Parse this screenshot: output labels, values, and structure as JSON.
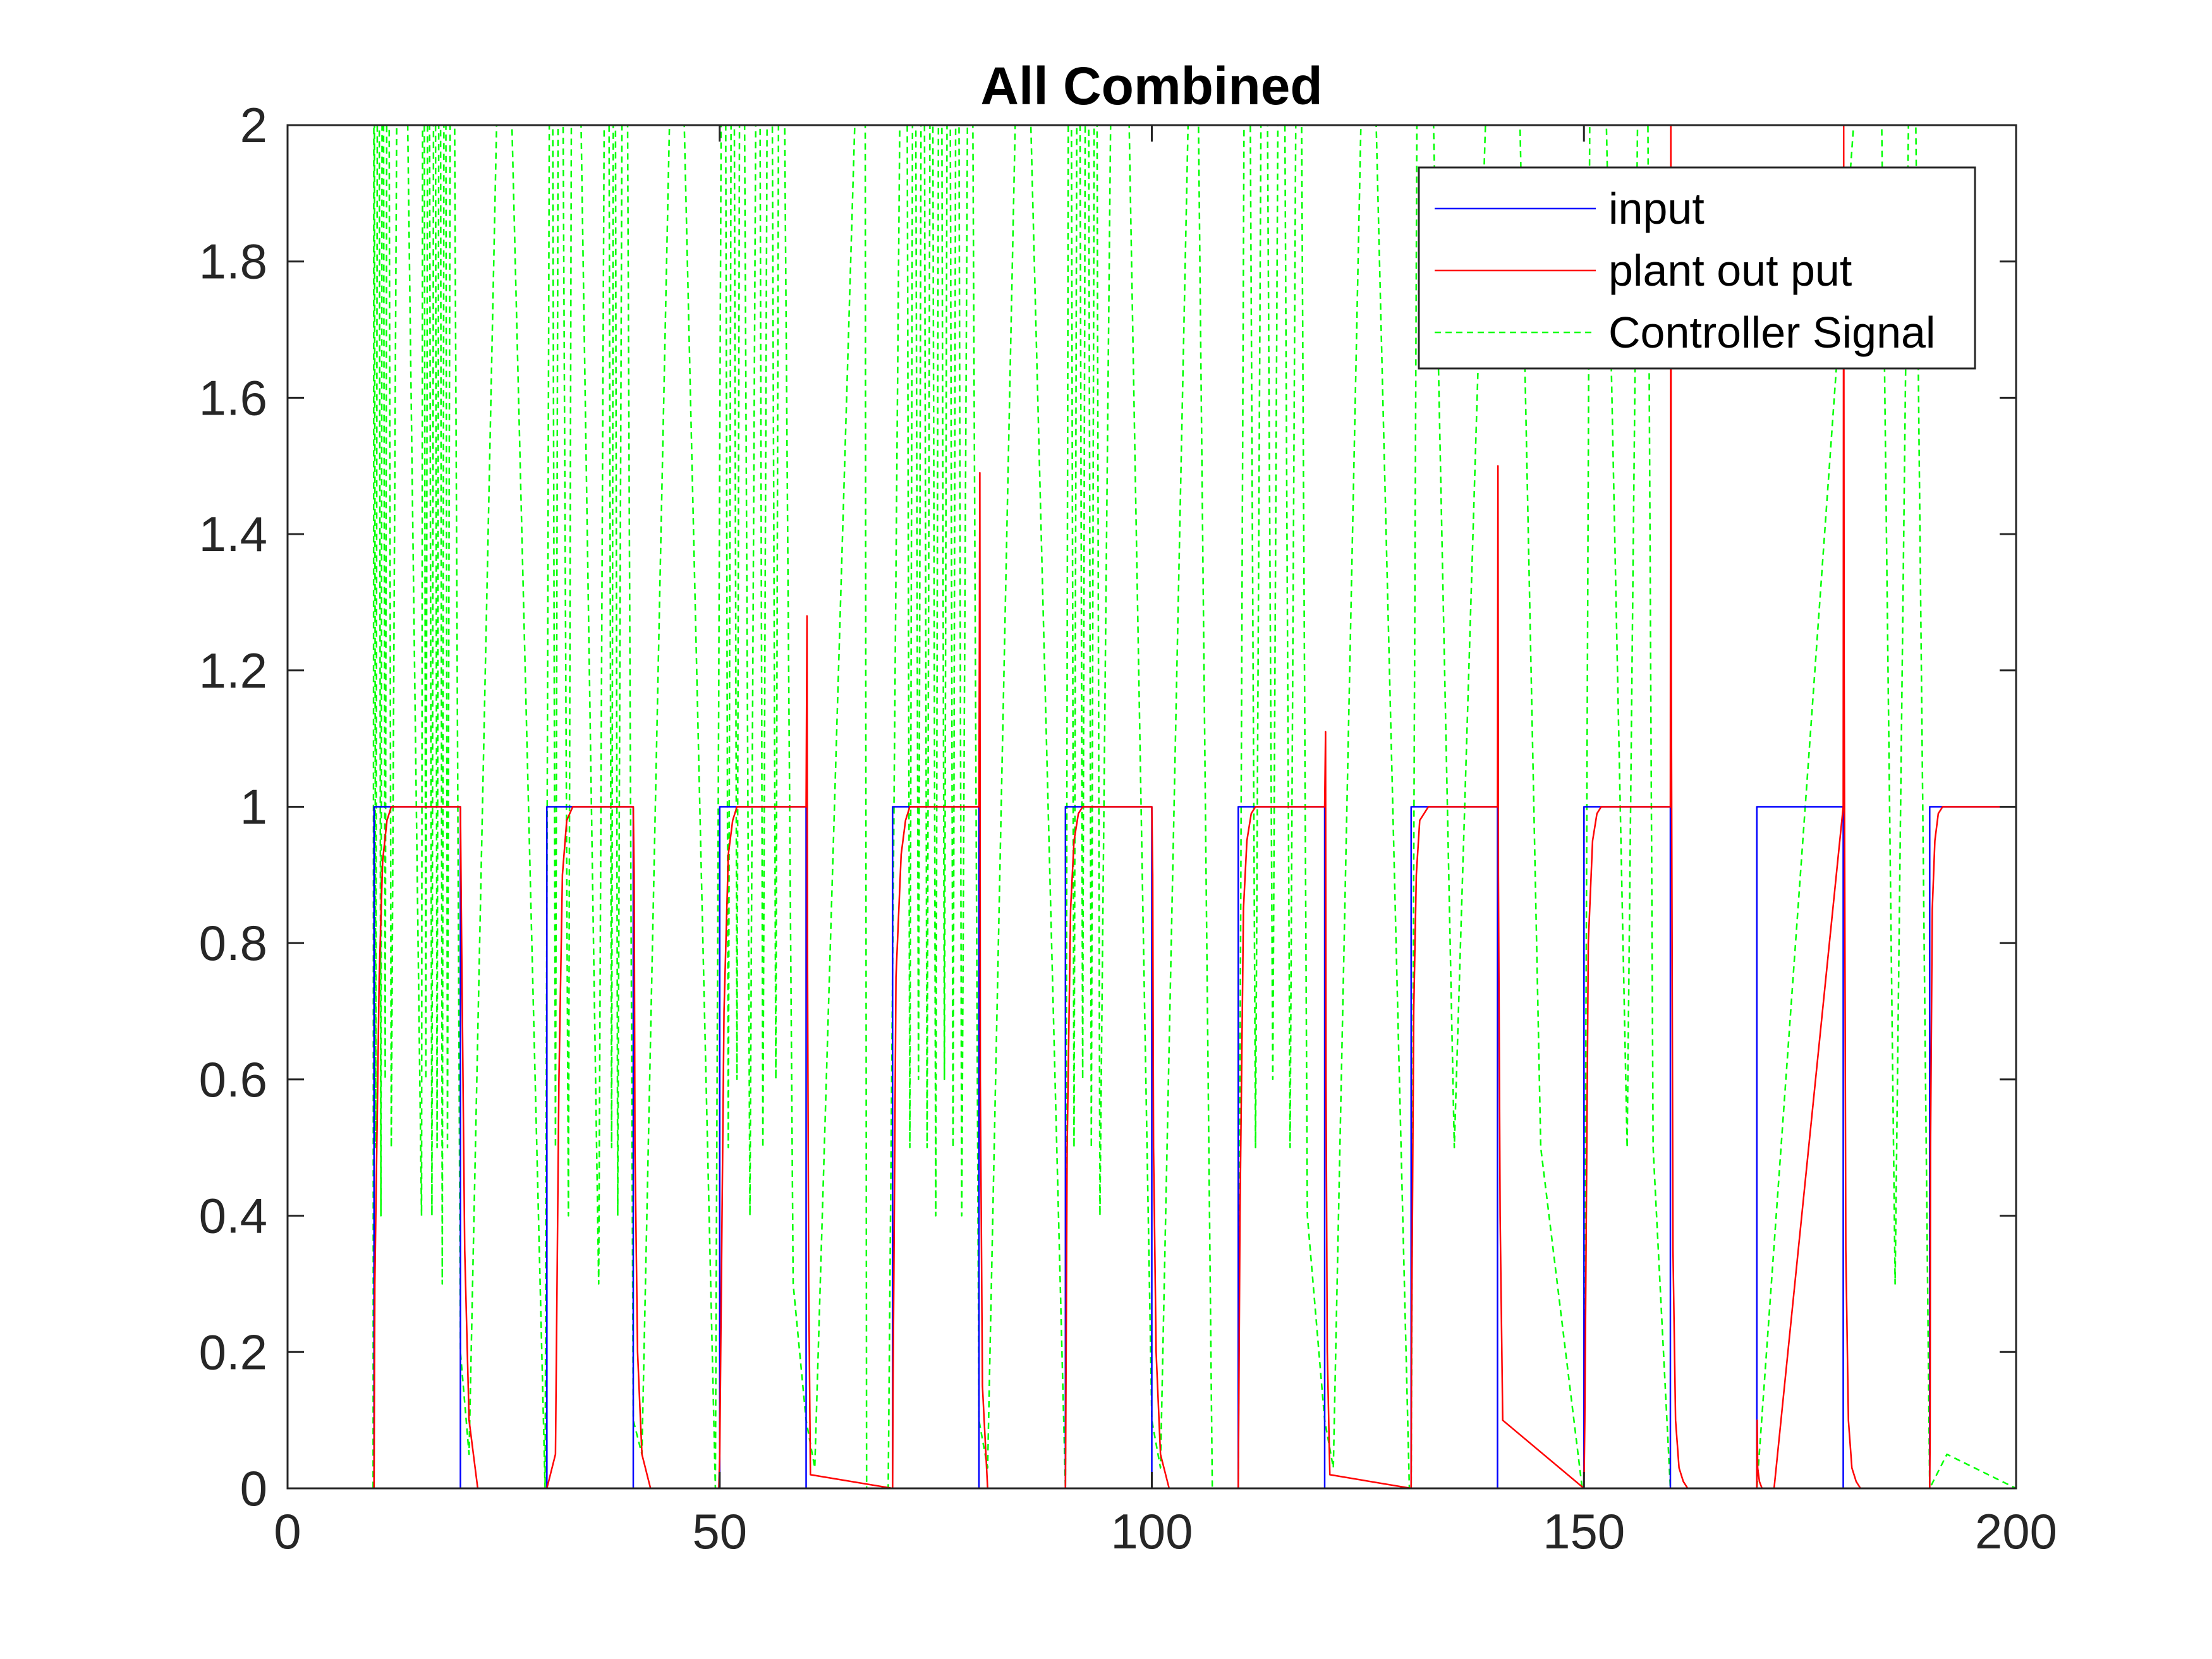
{
  "chart_data": {
    "type": "line",
    "title": "All Combined",
    "xlabel": "",
    "ylabel": "",
    "xlim": [
      0,
      200
    ],
    "ylim": [
      0,
      2
    ],
    "xticks": [
      "0",
      "50",
      "100",
      "150",
      "200"
    ],
    "yticks": [
      "0",
      "0.2",
      "0.4",
      "0.6",
      "0.8",
      "1",
      "1.2",
      "1.4",
      "1.6",
      "1.8",
      "2"
    ],
    "grid": false,
    "legend_position": "top-right",
    "series": [
      {
        "name": "input",
        "color": "#0000ff",
        "style": "solid",
        "x": [
          0,
          10,
          10,
          20,
          20,
          30,
          30,
          40,
          40,
          50,
          50,
          60,
          60,
          70,
          70,
          80,
          80,
          90,
          90,
          100,
          100,
          110,
          110,
          120,
          120,
          130,
          130,
          140,
          140,
          150,
          150,
          160,
          160,
          170,
          170,
          180,
          180,
          190,
          190,
          200
        ],
        "y": [
          0,
          0,
          1,
          1,
          0,
          0,
          1,
          1,
          0,
          0,
          1,
          1,
          0,
          0,
          1,
          1,
          0,
          0,
          1,
          1,
          0,
          0,
          1,
          1,
          0,
          0,
          1,
          1,
          0,
          0,
          1,
          1,
          0,
          0,
          1,
          1,
          0,
          0,
          1,
          1
        ]
      },
      {
        "name": "plant out put",
        "color": "#ff0000",
        "style": "solid",
        "x": [
          0,
          10,
          10.1,
          10.6,
          11,
          11.5,
          12,
          20,
          20.1,
          20.5,
          21,
          22,
          30,
          31,
          31.4,
          31.8,
          32.3,
          33,
          40,
          40.1,
          40.2,
          40.5,
          41,
          42,
          49.9,
          50,
          50.5,
          51,
          51.5,
          52,
          60,
          60.1,
          60.15,
          60.3,
          60.5,
          70,
          70.05,
          70.2,
          70.4,
          71,
          71.5,
          72,
          80,
          80.1,
          80.15,
          80.4,
          81,
          90,
          90.05,
          90.2,
          90.6,
          91,
          91.5,
          92,
          100,
          100.1,
          100.2,
          100.5,
          101,
          102,
          110,
          110.2,
          110.6,
          111,
          111.5,
          112,
          120,
          120.1,
          120.15,
          120.3,
          120.6,
          130,
          130.05,
          130.3,
          130.6,
          131,
          132,
          140,
          140.05,
          140.1,
          140.3,
          140.6,
          150,
          150.1,
          150.5,
          151,
          151.5,
          152,
          160,
          160.05,
          160.1,
          160.3,
          160.6,
          161,
          161.5,
          162,
          170,
          170.05,
          170.1,
          170.3,
          170.6,
          171,
          171.5,
          172,
          180,
          180.05,
          180.1,
          180.3,
          180.6,
          181,
          181.5,
          182,
          190,
          190.05,
          190.1,
          190.3,
          190.6,
          191,
          191.5,
          192,
          200
        ],
        "y": [
          0,
          0,
          0.3,
          0.75,
          0.92,
          0.98,
          1,
          1,
          0.85,
          0.35,
          0.1,
          0,
          0,
          0.05,
          0.6,
          0.9,
          0.98,
          1,
          1,
          0.9,
          0.5,
          0.2,
          0.05,
          0,
          0,
          0.05,
          0.7,
          0.93,
          0.98,
          1,
          1,
          1.28,
          0.8,
          0.3,
          0.02,
          0,
          0.13,
          0.4,
          0.75,
          0.93,
          0.98,
          1,
          1,
          1.49,
          0.6,
          0.15,
          0,
          0,
          0.1,
          0.5,
          0.85,
          0.95,
          0.99,
          1,
          1,
          0.9,
          0.5,
          0.2,
          0.05,
          0,
          0,
          0.4,
          0.85,
          0.95,
          0.99,
          1,
          1,
          1.11,
          0.6,
          0.2,
          0.02,
          0,
          0.2,
          0.7,
          0.9,
          0.98,
          1,
          1,
          1.5,
          0.9,
          0.4,
          0.1,
          0,
          0.1,
          0.8,
          0.95,
          0.99,
          1,
          1,
          2,
          1.2,
          0.35,
          0.1,
          0.03,
          0.01,
          0,
          0,
          0.1,
          0.03,
          0.01,
          0,
          0,
          0,
          0,
          1,
          2,
          1.2,
          0.35,
          0.1,
          0.03,
          0.01,
          0,
          0,
          0.07,
          0.5,
          0.85,
          0.95,
          0.99,
          1,
          1,
          1
        ]
      },
      {
        "name": "Controller Signal",
        "color": "#00ff00",
        "style": "dashed",
        "x": [
          0,
          9.9,
          10,
          10.2,
          10.5,
          10.8,
          11,
          11.3,
          11.6,
          12,
          13,
          15.5,
          15.7,
          16,
          16.3,
          16.7,
          17,
          17.3,
          17.6,
          17.9,
          18.2,
          18.5,
          19,
          20,
          21,
          25,
          29.8,
          30.5,
          31,
          31.5,
          32.5,
          33,
          36,
          37,
          37.5,
          37.8,
          38.2,
          39,
          40,
          41,
          45,
          49.5,
          50.5,
          51,
          51.5,
          52,
          52.5,
          53.5,
          54.5,
          55,
          55.8,
          56.5,
          57,
          58.5,
          60,
          61,
          66.8,
          67,
          69.5,
          71.5,
          72,
          72.5,
          73,
          73.5,
          74,
          74.5,
          75,
          75.5,
          76,
          76.5,
          77,
          77.5,
          78,
          79,
          80,
          81,
          85,
          90,
          90.5,
          91,
          91.5,
          92,
          92.5,
          93,
          93.5,
          94,
          96,
          100,
          101,
          105,
          107,
          110,
          111,
          112,
          113,
          114,
          115,
          116,
          117,
          118,
          120,
          121,
          125,
          129.8,
          130,
          131,
          135,
          141,
          145,
          149.8,
          150,
          151,
          155,
          157,
          158,
          160,
          170,
          184,
          186,
          188,
          190,
          192,
          200
        ],
        "y": [
          0,
          0,
          2.5,
          0.5,
          3,
          0.4,
          2.8,
          0.6,
          3,
          0.5,
          2.9,
          0.4,
          3,
          0.6,
          2.8,
          0.4,
          3,
          0.5,
          2.9,
          0.3,
          3,
          0.5,
          2.9,
          0.2,
          0.05,
          2.5,
          0,
          2.9,
          0.5,
          3,
          0.4,
          2.8,
          0.3,
          3,
          0.5,
          2.9,
          0.4,
          3,
          0.1,
          0.05,
          2.5,
          0,
          3,
          0.5,
          2.9,
          0.6,
          3,
          0.4,
          2.8,
          0.5,
          3,
          0.6,
          2.9,
          0.3,
          0.1,
          0.03,
          2.5,
          0,
          0,
          3,
          0.5,
          2.9,
          0.6,
          3,
          0.5,
          2.8,
          0.4,
          3,
          0.6,
          2.9,
          0.5,
          3,
          0.4,
          2.8,
          0.1,
          0.03,
          2.5,
          0,
          3,
          0.5,
          2.9,
          0.6,
          3,
          0.5,
          2.8,
          0.4,
          3,
          0.1,
          0.03,
          2.5,
          0,
          0,
          3,
          0.5,
          2.9,
          0.6,
          3,
          0.5,
          2.8,
          0.4,
          0.1,
          0.03,
          2.5,
          0,
          0,
          3,
          0.5,
          3,
          0.5,
          0,
          0,
          3,
          0.5,
          3,
          0.5,
          0,
          0,
          2.5,
          0.3,
          2.5,
          0,
          0.05,
          0
        ]
      }
    ]
  }
}
